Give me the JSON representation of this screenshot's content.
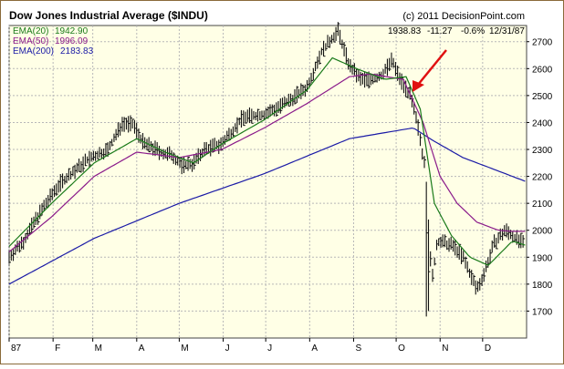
{
  "chart_data": {
    "type": "ohlc",
    "title": "Dow Jones Industrial Average ($INDU)",
    "copyright": "(c) 2011 DecisionPoint.com",
    "last_quote": {
      "close": "1938.83",
      "change": "-11.27",
      "pct": "-0.6%",
      "date": "12/31/87"
    },
    "legend": [
      {
        "label": "EMA(20)",
        "value": "1942.90",
        "color": "#1a7a1a"
      },
      {
        "label": "EMA(50)",
        "value": "1996.09",
        "color": "#8a1a8a"
      },
      {
        "label": "EMA(200)",
        "value": "2183.83",
        "color": "#1a1aa6"
      }
    ],
    "ylim": [
      1600,
      2760
    ],
    "yticks": [
      "1700",
      "1800",
      "1900",
      "2000",
      "2100",
      "2200",
      "2300",
      "2400",
      "2500",
      "2600",
      "2700"
    ],
    "xlim": [
      0,
      365
    ],
    "xticks": [
      {
        "label": "87",
        "day": 0
      },
      {
        "label": "F",
        "day": 31
      },
      {
        "label": "M",
        "day": 59
      },
      {
        "label": "A",
        "day": 90
      },
      {
        "label": "M",
        "day": 120
      },
      {
        "label": "J",
        "day": 151
      },
      {
        "label": "J",
        "day": 181
      },
      {
        "label": "A",
        "day": 212
      },
      {
        "label": "S",
        "day": 243
      },
      {
        "label": "O",
        "day": 273
      },
      {
        "label": "N",
        "day": 304
      },
      {
        "label": "D",
        "day": 334
      }
    ],
    "anchors": [
      [
        0,
        1900
      ],
      [
        10,
        1960
      ],
      [
        20,
        2050
      ],
      [
        35,
        2170
      ],
      [
        55,
        2260
      ],
      [
        70,
        2300
      ],
      [
        80,
        2400
      ],
      [
        88,
        2390
      ],
      [
        95,
        2320
      ],
      [
        100,
        2310
      ],
      [
        110,
        2280
      ],
      [
        115,
        2280
      ],
      [
        122,
        2240
      ],
      [
        130,
        2250
      ],
      [
        138,
        2300
      ],
      [
        150,
        2320
      ],
      [
        165,
        2420
      ],
      [
        180,
        2430
      ],
      [
        195,
        2470
      ],
      [
        210,
        2530
      ],
      [
        220,
        2660
      ],
      [
        232,
        2740
      ],
      [
        240,
        2610
      ],
      [
        248,
        2560
      ],
      [
        255,
        2560
      ],
      [
        262,
        2570
      ],
      [
        270,
        2630
      ],
      [
        275,
        2570
      ],
      [
        283,
        2500
      ],
      [
        289,
        2370
      ],
      [
        292,
        2270
      ],
      [
        294,
        2250
      ],
      [
        298,
        1800
      ],
      [
        302,
        1960
      ],
      [
        308,
        1950
      ],
      [
        314,
        1940
      ],
      [
        320,
        1900
      ],
      [
        325,
        1840
      ],
      [
        330,
        1780
      ],
      [
        335,
        1840
      ],
      [
        342,
        1950
      ],
      [
        350,
        2000
      ],
      [
        355,
        1980
      ],
      [
        365,
        1940
      ]
    ],
    "spikes": [
      {
        "day": 294,
        "high": 2180,
        "low": 1680
      },
      {
        "day": 295,
        "high": 2100,
        "low": 1640
      },
      {
        "day": 296,
        "high": 2040,
        "low": 1700
      }
    ],
    "ema200_anchors": [
      [
        0,
        1800
      ],
      [
        60,
        1970
      ],
      [
        120,
        2100
      ],
      [
        180,
        2210
      ],
      [
        240,
        2340
      ],
      [
        285,
        2380
      ],
      [
        300,
        2330
      ],
      [
        320,
        2270
      ],
      [
        340,
        2230
      ],
      [
        365,
        2180
      ]
    ],
    "ema50_anchors": [
      [
        0,
        1920
      ],
      [
        30,
        2050
      ],
      [
        60,
        2200
      ],
      [
        90,
        2290
      ],
      [
        120,
        2270
      ],
      [
        150,
        2300
      ],
      [
        180,
        2380
      ],
      [
        210,
        2470
      ],
      [
        240,
        2570
      ],
      [
        255,
        2580
      ],
      [
        278,
        2560
      ],
      [
        292,
        2400
      ],
      [
        304,
        2200
      ],
      [
        316,
        2100
      ],
      [
        330,
        2030
      ],
      [
        345,
        2000
      ],
      [
        355,
        1996
      ],
      [
        365,
        1996
      ]
    ],
    "ema20_anchors": [
      [
        0,
        1940
      ],
      [
        30,
        2100
      ],
      [
        60,
        2250
      ],
      [
        90,
        2340
      ],
      [
        110,
        2290
      ],
      [
        130,
        2250
      ],
      [
        150,
        2320
      ],
      [
        180,
        2410
      ],
      [
        210,
        2520
      ],
      [
        228,
        2640
      ],
      [
        245,
        2600
      ],
      [
        265,
        2560
      ],
      [
        280,
        2570
      ],
      [
        290,
        2450
      ],
      [
        300,
        2100
      ],
      [
        312,
        1980
      ],
      [
        325,
        1900
      ],
      [
        338,
        1870
      ],
      [
        355,
        1960
      ],
      [
        365,
        1943
      ]
    ]
  }
}
